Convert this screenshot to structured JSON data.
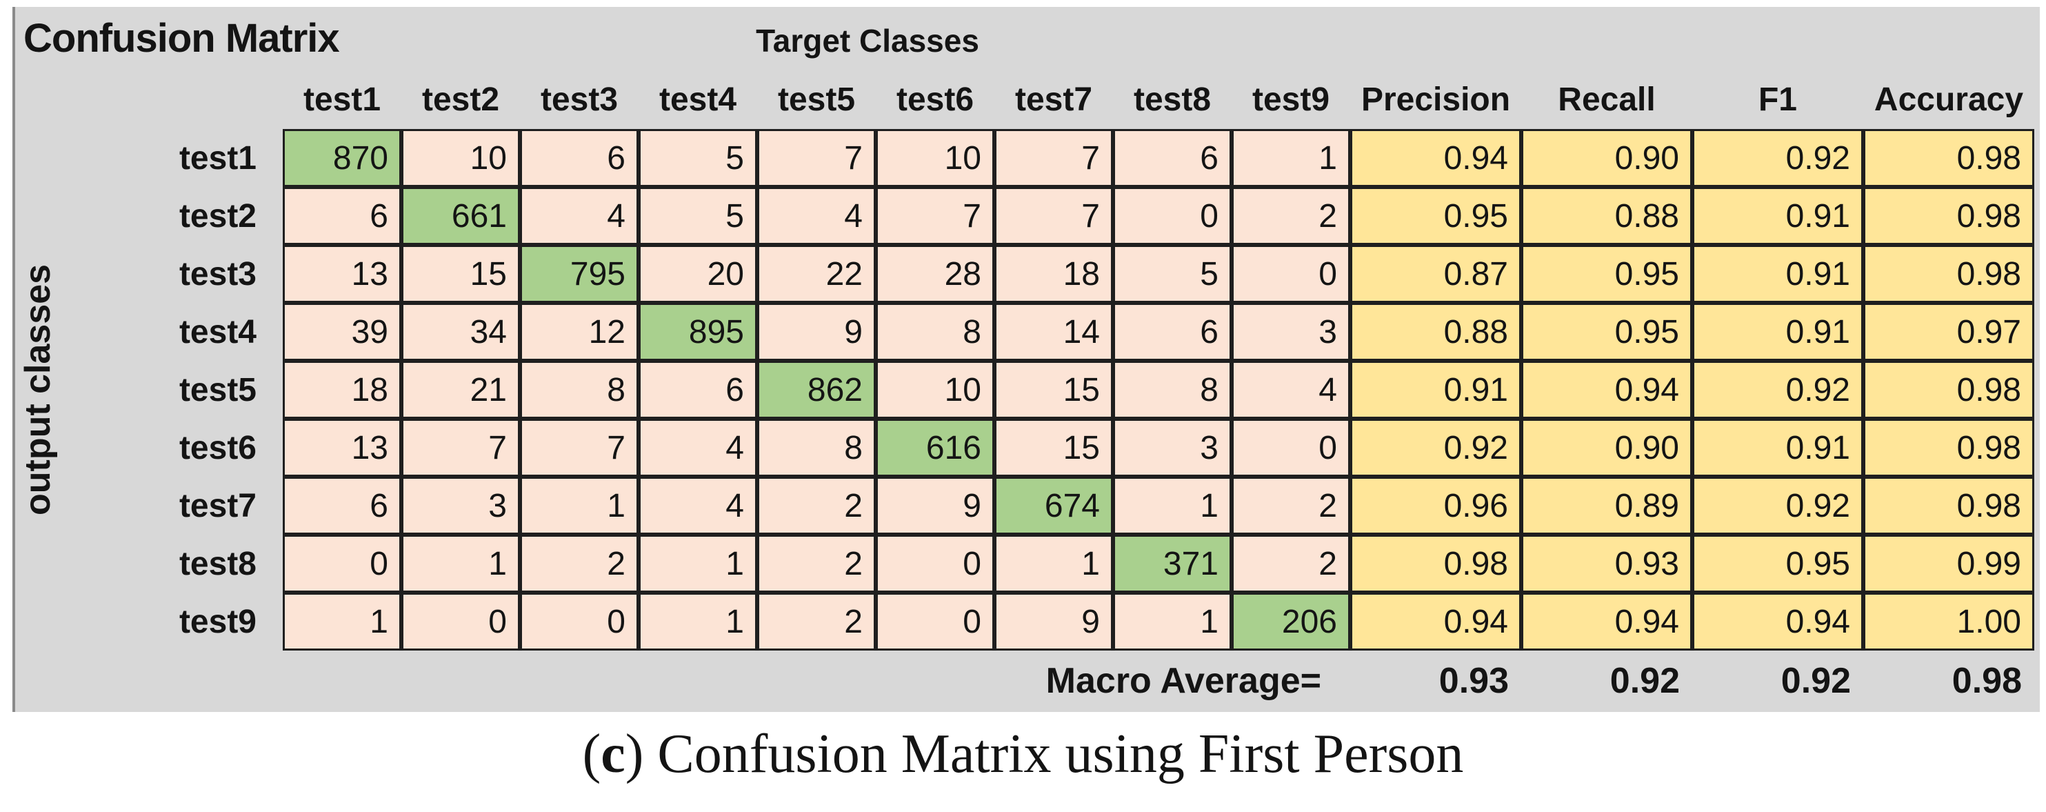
{
  "figure": {
    "title": "Confusion Matrix",
    "target_label": "Target Classes",
    "output_label": "output classes",
    "caption_prefix": "(",
    "caption_c": "c",
    "caption_rest": ") Confusion Matrix using First Person"
  },
  "chart_data": {
    "type": "heatmap",
    "title": "Confusion Matrix",
    "xlabel": "Target Classes",
    "ylabel": "output classes",
    "x_categories": [
      "test1",
      "test2",
      "test3",
      "test4",
      "test5",
      "test6",
      "test7",
      "test8",
      "test9"
    ],
    "y_categories": [
      "test1",
      "test2",
      "test3",
      "test4",
      "test5",
      "test6",
      "test7",
      "test8",
      "test9"
    ],
    "matrix": [
      [
        870,
        10,
        6,
        5,
        7,
        10,
        7,
        6,
        1
      ],
      [
        6,
        661,
        4,
        5,
        4,
        7,
        7,
        0,
        2
      ],
      [
        13,
        15,
        795,
        20,
        22,
        28,
        18,
        5,
        0
      ],
      [
        39,
        34,
        12,
        895,
        9,
        8,
        14,
        6,
        3
      ],
      [
        18,
        21,
        8,
        6,
        862,
        10,
        15,
        8,
        4
      ],
      [
        13,
        7,
        7,
        4,
        8,
        616,
        15,
        3,
        0
      ],
      [
        6,
        3,
        1,
        4,
        2,
        9,
        674,
        1,
        2
      ],
      [
        0,
        1,
        2,
        1,
        2,
        0,
        1,
        371,
        2
      ],
      [
        1,
        0,
        0,
        1,
        2,
        0,
        9,
        1,
        206
      ]
    ],
    "metric_columns": [
      "Precision",
      "Recall",
      "F1",
      "Accuracy"
    ],
    "metrics": [
      [
        "0.94",
        "0.90",
        "0.92",
        "0.98"
      ],
      [
        "0.95",
        "0.88",
        "0.91",
        "0.98"
      ],
      [
        "0.87",
        "0.95",
        "0.91",
        "0.98"
      ],
      [
        "0.88",
        "0.95",
        "0.91",
        "0.97"
      ],
      [
        "0.91",
        "0.94",
        "0.92",
        "0.98"
      ],
      [
        "0.92",
        "0.90",
        "0.91",
        "0.98"
      ],
      [
        "0.96",
        "0.89",
        "0.92",
        "0.98"
      ],
      [
        "0.98",
        "0.93",
        "0.95",
        "0.99"
      ],
      [
        "0.94",
        "0.94",
        "0.94",
        "1.00"
      ]
    ],
    "macro_average_label": "Macro Average=",
    "macro_average": [
      "0.93",
      "0.92",
      "0.92",
      "0.98"
    ],
    "caption": "(c) Confusion Matrix using First Person",
    "legend": false,
    "grid": true,
    "colors": {
      "diagonal_cell": "#a9d08e",
      "off_diagonal_cell": "#fce4d6",
      "metric_cell": "#ffe699",
      "panel_background": "#d8d8d8",
      "grid_border": "#1f1f1f",
      "text": "#141414"
    }
  }
}
